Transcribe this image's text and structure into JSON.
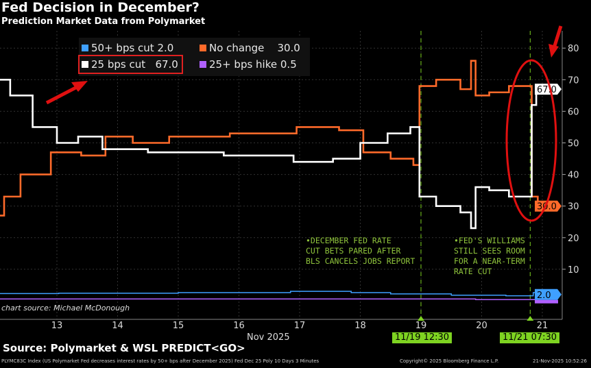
{
  "header": {
    "title": "Fed Decision in December?",
    "subtitle": "Prediction Market Data from Polymarket"
  },
  "legend": [
    {
      "label": "50+ bps cut",
      "value": "2.0",
      "color": "#3fa0ff"
    },
    {
      "label": "No change",
      "value": "30.0",
      "color": "#ff6a2a"
    },
    {
      "label": "25 bps cut",
      "value": "67.0",
      "color": "#ffffff",
      "highlighted": true
    },
    {
      "label": "25+ bps hike",
      "value": "0.5",
      "color": "#b060ff"
    }
  ],
  "annotations": {
    "left": "•DECEMBER FED RATE\nCUT BETS PARED AFTER\nBLS CANCELS JOBS REPORT",
    "right": "•FED'S WILLIAMS\nSTILL SEES ROOM\nFOR A NEAR-TERM\nRATE CUT",
    "chart_source": "chart source: Michael McDonough",
    "event_markers": [
      {
        "label": "11/19 12:30",
        "day": 19.0
      },
      {
        "label": "11/21 07:30",
        "day": 20.8
      }
    ]
  },
  "footer": {
    "source": "Source: Polymarket & WSL PREDICT<GO>",
    "index_desc": "PLYMC83C Index (US Polymarket Fed decreases interest rates by 50+ bps after December 2025) Fed Dec 25 Poly 10 Days 3 Minutes",
    "copyright": "Copyright© 2025 Bloomberg Finance L.P.",
    "timestamp": "21-Nov-2025 10:52:26"
  },
  "chart_data": {
    "type": "line",
    "title": "Fed Decision in December?",
    "subtitle": "Prediction Market Data from Polymarket",
    "xlabel": "Nov 2025",
    "x_ticks": [
      "13",
      "14",
      "15",
      "16",
      "17",
      "18",
      "19",
      "20",
      "21"
    ],
    "y_ticks": [
      "10",
      "20",
      "30",
      "40",
      "50",
      "60",
      "70",
      "80"
    ],
    "ylim": [
      0,
      85
    ],
    "grid": true,
    "legend_position": "top-left",
    "y_axis_side": "right",
    "series": [
      {
        "name": "25 bps cut",
        "color": "#ffffff",
        "last": "67.0",
        "x": [
          12.06,
          12.4,
          12.8,
          13.2,
          13.5,
          14,
          15,
          16.5,
          17.3,
          17.8,
          18.2,
          18.7,
          18.95,
          19.0,
          19.5,
          19.8,
          19.85,
          19.95,
          20.3,
          20.6,
          20.8,
          20.85,
          20.95,
          21.0
        ],
        "y": [
          70,
          65,
          55,
          50,
          52,
          48,
          47,
          46,
          44,
          45,
          50,
          53,
          55,
          33,
          30,
          28,
          23,
          36,
          35,
          33,
          33,
          62,
          67,
          67
        ]
      },
      {
        "name": "No change",
        "color": "#ff6a2a",
        "last": "30.0",
        "x": [
          12.06,
          12.2,
          12.6,
          13.2,
          13.6,
          14,
          14.5,
          15.2,
          16.5,
          17.4,
          17.9,
          18.2,
          18.8,
          18.95,
          19.0,
          19.5,
          19.8,
          19.85,
          19.95,
          20.3,
          20.6,
          20.8,
          20.85,
          21.0
        ],
        "y": [
          27,
          33,
          40,
          47,
          46,
          52,
          50,
          52,
          53,
          55,
          54,
          47,
          45,
          43,
          68,
          70,
          67,
          76,
          65,
          66,
          68,
          68,
          33,
          30
        ]
      },
      {
        "name": "50+ bps cut",
        "color": "#3fa0ff",
        "last": "2.0",
        "x": [
          12.06,
          14,
          16,
          17.7,
          18,
          19,
          20,
          20.8,
          20.9,
          21.0
        ],
        "y": [
          2.3,
          2.4,
          2.6,
          3.0,
          2.6,
          2.2,
          1.8,
          1.6,
          2.6,
          2.0
        ]
      },
      {
        "name": "25+ bps hike",
        "color": "#b060ff",
        "last": "0.5",
        "x": [
          12.06,
          19,
          20.8,
          21.0
        ],
        "y": [
          0.6,
          0.6,
          0.4,
          0.5
        ]
      }
    ]
  }
}
